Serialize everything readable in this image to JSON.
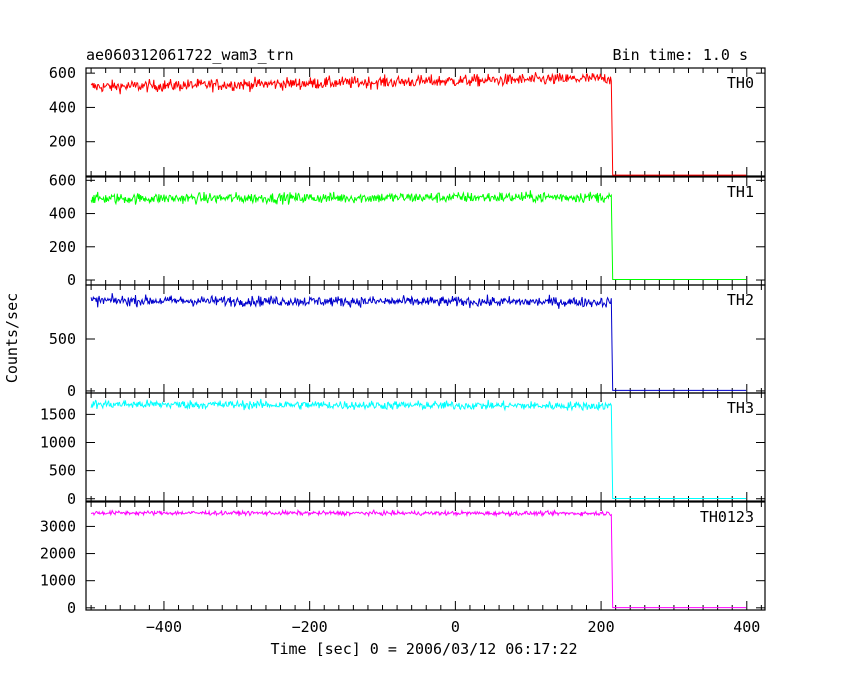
{
  "chart_data": {
    "type": "line",
    "title": "ae060312061722_wam3_trn",
    "subtitle": "Bin time: 1.0 s",
    "xlabel": "Time [sec] 0 = 2006/03/12 06:17:22",
    "ylabel": "Counts/sec",
    "xlim": [
      -507,
      425
    ],
    "x_ticks": [
      -400,
      -200,
      0,
      200,
      400
    ],
    "grid": false,
    "panels": [
      {
        "name": "TH0",
        "color": "#ff0000",
        "ylim": [
          0,
          630
        ],
        "y_ticks": [
          0,
          200,
          400,
          600
        ],
        "y_tick_labels": [
          "",
          "200",
          "400",
          "600"
        ],
        "pre_level_start": 520,
        "pre_level_end": 570,
        "noise": 25,
        "drop_x": 215,
        "post_level": 5
      },
      {
        "name": "TH1",
        "color": "#00ff00",
        "ylim": [
          -30,
          620
        ],
        "y_ticks": [
          0,
          200,
          400,
          600
        ],
        "y_tick_labels": [
          "0",
          "200",
          "400",
          "600"
        ],
        "pre_level_start": 490,
        "pre_level_end": 500,
        "noise": 23,
        "drop_x": 215,
        "post_level": 3
      },
      {
        "name": "TH2",
        "color": "#0000cc",
        "ylim": [
          -20,
          1020
        ],
        "y_ticks": [
          0,
          500
        ],
        "y_tick_labels": [
          "0",
          "500"
        ],
        "pre_level_start": 870,
        "pre_level_end": 855,
        "noise": 35,
        "drop_x": 215,
        "post_level": 5
      },
      {
        "name": "TH3",
        "color": "#00ffff",
        "ylim": [
          -40,
          1880
        ],
        "y_ticks": [
          0,
          500,
          1000,
          1500
        ],
        "y_tick_labels": [
          "0",
          "500",
          "1000",
          "1500"
        ],
        "pre_level_start": 1680,
        "pre_level_end": 1650,
        "noise": 55,
        "drop_x": 215,
        "post_level": 5
      },
      {
        "name": "TH0123",
        "color": "#ff00ff",
        "ylim": [
          -80,
          3900
        ],
        "y_ticks": [
          0,
          1000,
          2000,
          3000
        ],
        "y_tick_labels": [
          "0",
          "1000",
          "2000",
          "3000"
        ],
        "pre_level_start": 3500,
        "pre_level_end": 3480,
        "noise": 55,
        "drop_x": 215,
        "post_level": 10
      }
    ]
  }
}
